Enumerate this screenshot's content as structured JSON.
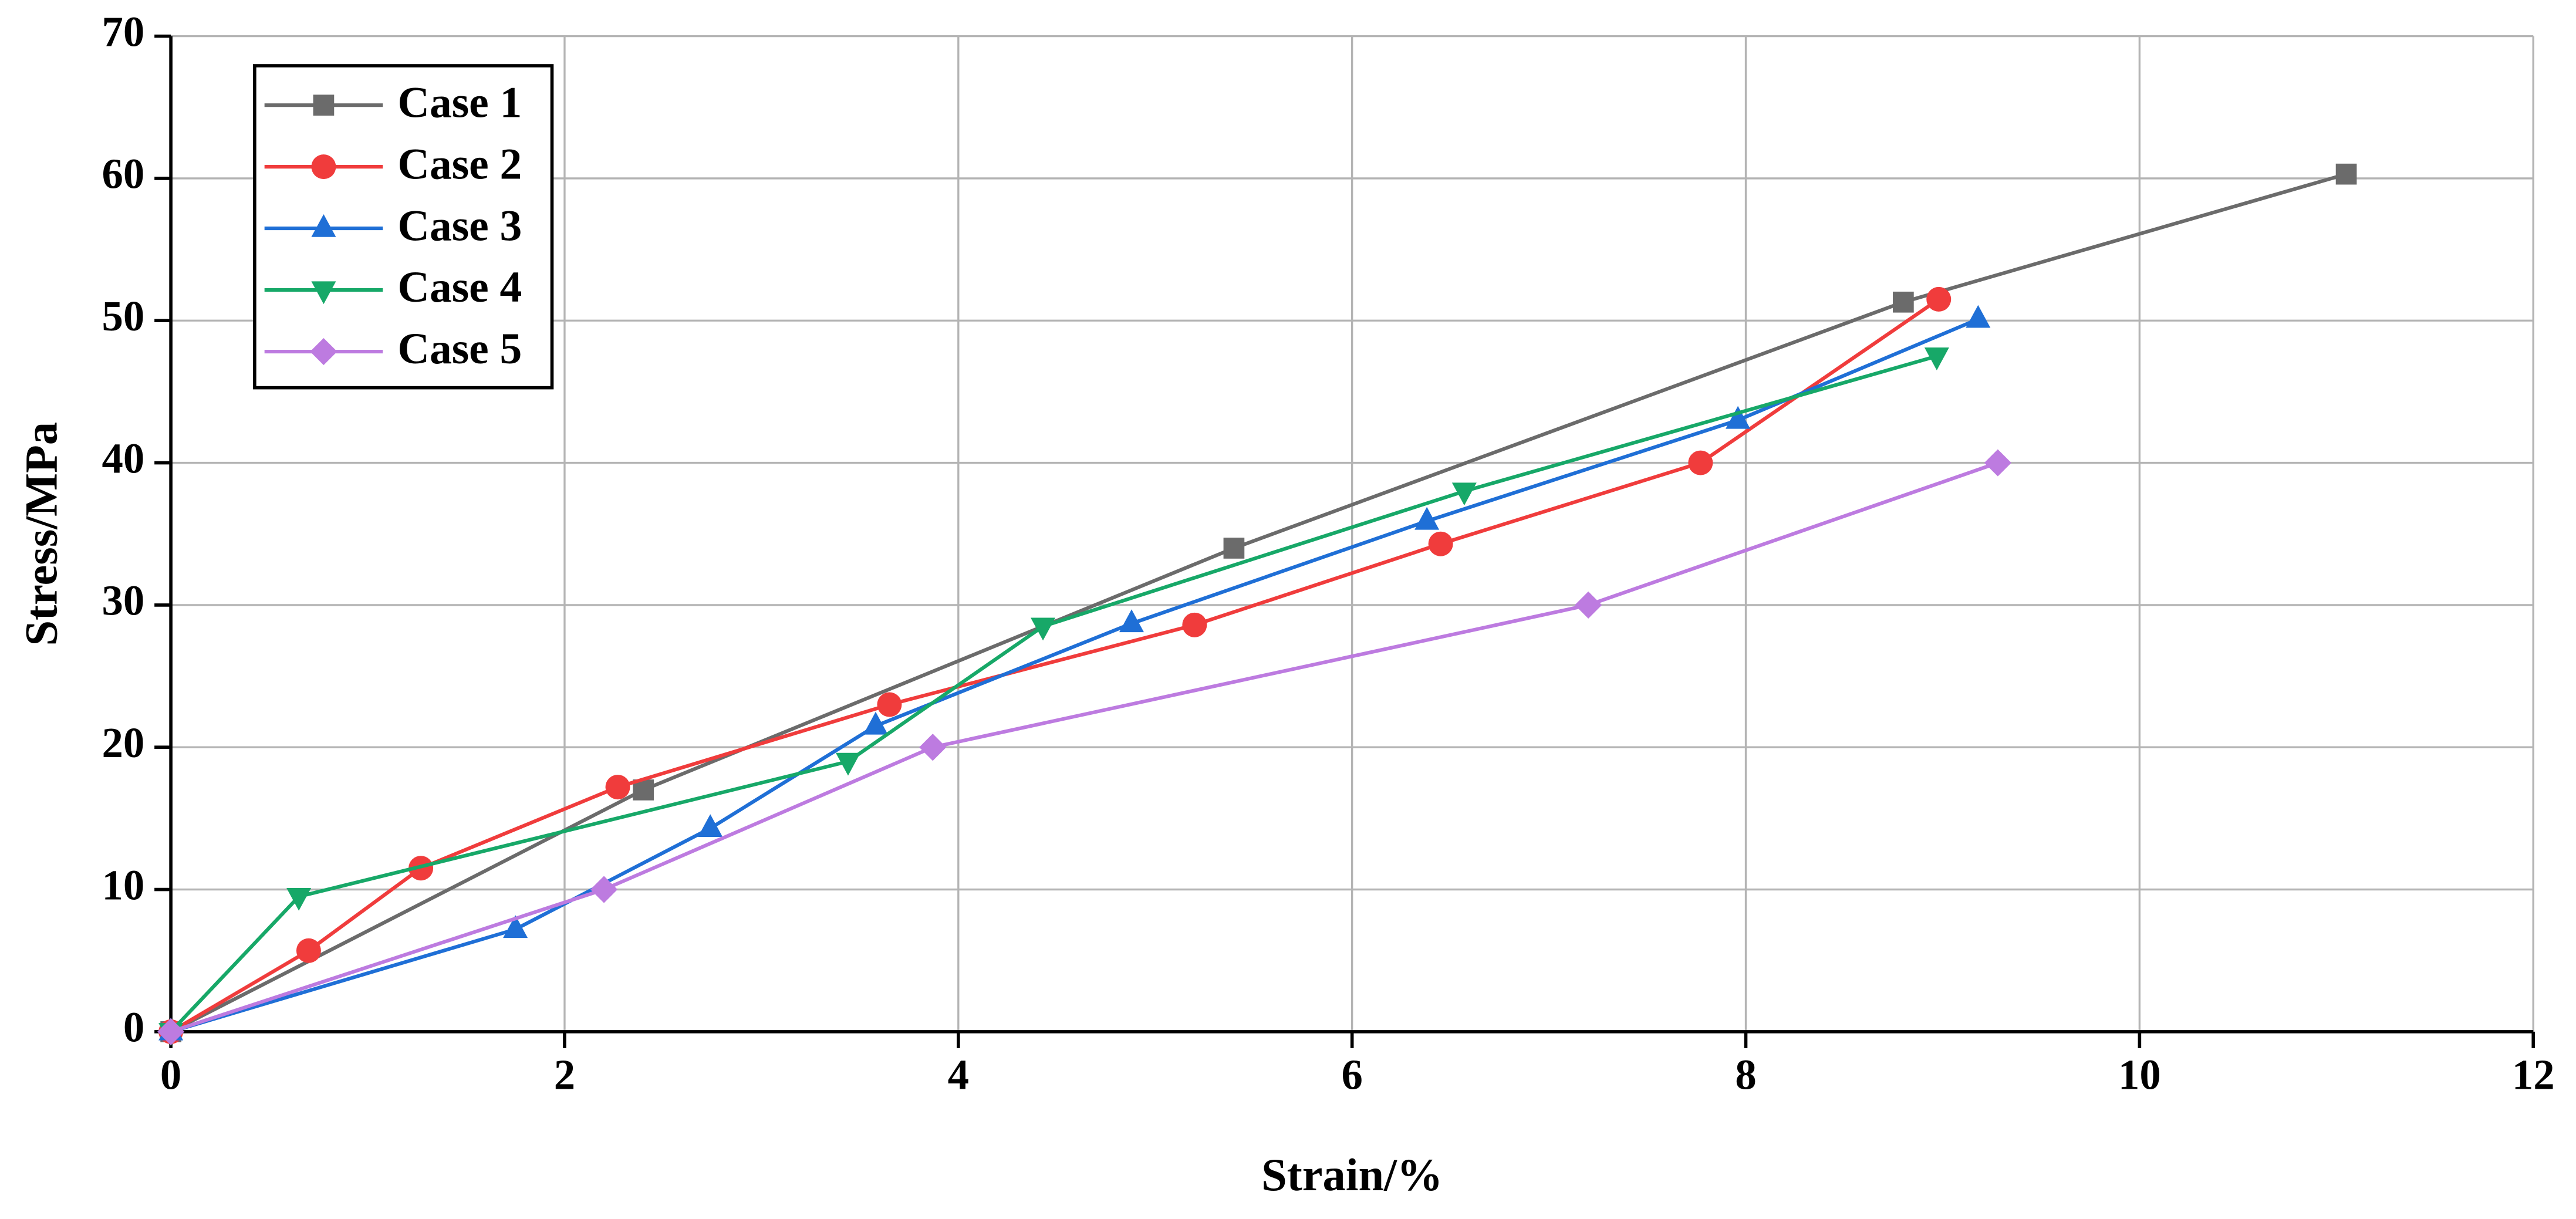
{
  "chart_data": {
    "type": "line",
    "xlabel": "Strain/%",
    "ylabel": "Stress/MPa",
    "xlim": [
      0,
      12
    ],
    "xticks": [
      0,
      2,
      4,
      6,
      8,
      10,
      12
    ],
    "ylim": [
      0,
      70
    ],
    "yticks": [
      0,
      10,
      20,
      30,
      40,
      50,
      60,
      70
    ],
    "grid": true,
    "legend": "upper left",
    "series": [
      {
        "name": "Case 1",
        "color": "#6b6b6b",
        "marker": "square",
        "x": [
          0,
          2.4,
          5.4,
          8.8,
          11.05
        ],
        "values": [
          0,
          17,
          34,
          51.3,
          60.3
        ]
      },
      {
        "name": "Case 2",
        "color": "#f03c3c",
        "marker": "circle",
        "x": [
          0,
          0.7,
          1.27,
          2.27,
          3.65,
          5.2,
          6.45,
          7.77,
          8.98
        ],
        "values": [
          0,
          5.7,
          11.5,
          17.2,
          23,
          28.6,
          34.3,
          40,
          51.5
        ]
      },
      {
        "name": "Case 3",
        "color": "#1f6fd6",
        "marker": "triangle-up",
        "x": [
          0,
          1.75,
          2.74,
          3.58,
          4.88,
          6.38,
          7.96,
          9.18
        ],
        "values": [
          0,
          7.2,
          14.3,
          21.5,
          28.7,
          35.9,
          43,
          50.1
        ]
      },
      {
        "name": "Case 4",
        "color": "#17a868",
        "marker": "triangle-down",
        "x": [
          0,
          0.65,
          3.44,
          4.43,
          6.57,
          8.97
        ],
        "values": [
          0,
          9.5,
          19,
          28.5,
          38,
          47.5
        ]
      },
      {
        "name": "Case 5",
        "color": "#bd7be0",
        "marker": "diamond",
        "x": [
          0,
          2.2,
          3.87,
          7.2,
          9.28
        ],
        "values": [
          0,
          10,
          20,
          30,
          40
        ]
      }
    ]
  }
}
